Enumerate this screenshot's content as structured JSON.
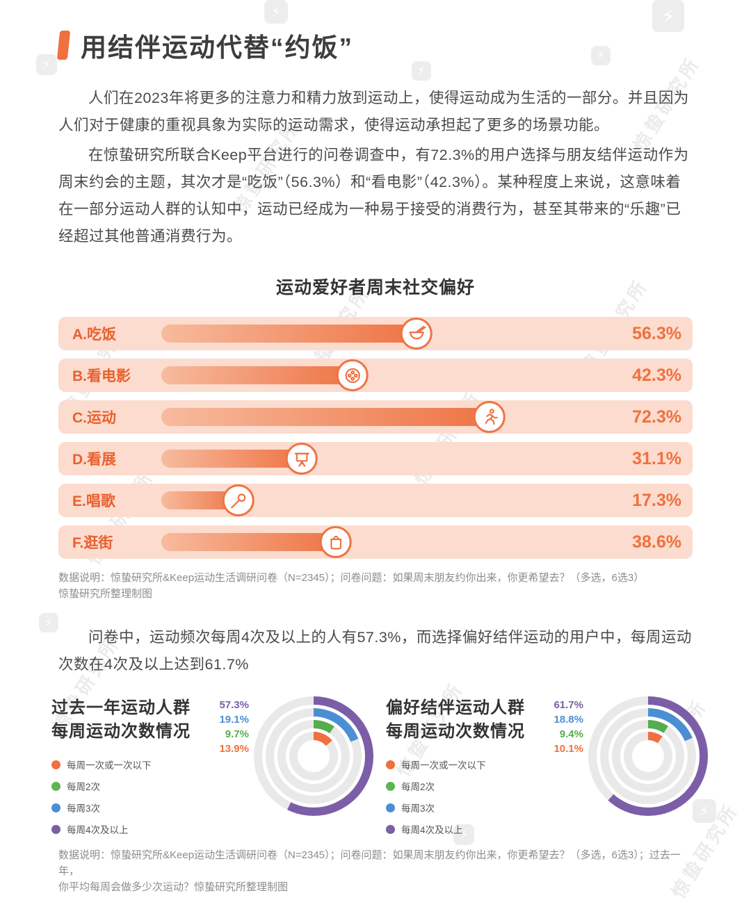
{
  "watermark": {
    "text": "惊蛰研究所",
    "bolt": "⚡"
  },
  "header": {
    "title": "用结伴运动代替“约饭”"
  },
  "intro": {
    "p1": "人们在2023年将更多的注意力和精力放到运动上，使得运动成为生活的一部分。并且因为人们对于健康的重视具象为实际的运动需求，使得运动承担起了更多的场景功能。",
    "p2": "在惊蛰研究所联合Keep平台进行的问卷调查中，有72.3%的用户选择与朋友结伴运动作为周末约会的主题，其次才是“吃饭”（56.3%）和“看电影”（42.3%）。某种程度上来说，这意味着在一部分运动人群的认知中，运动已经成为一种易于接受的消费行为，甚至其带来的“乐趣”已经超过其他普通消费行为。",
    "middle": "问卷中，运动频次每周4次及以上的人有57.3%，而选择偏好结伴运动的用户中，每周运动次数在4次及以上达到61.7%"
  },
  "chart_data": [
    {
      "type": "bar",
      "title": "运动爱好者周末社交偏好",
      "categories": [
        "A.吃饭",
        "B.看电影",
        "C.运动",
        "D.看展",
        "E.唱歌",
        "F.逛街"
      ],
      "values": [
        56.3,
        42.3,
        72.3,
        31.1,
        17.3,
        38.6
      ],
      "icons": [
        "bowl-icon",
        "film-reel-icon",
        "runner-icon",
        "easel-icon",
        "microphone-icon",
        "shopping-bag-icon"
      ],
      "unit": "%",
      "xlim": [
        0,
        100
      ],
      "bar_color_start": "#F7BB9E",
      "bar_color_end": "#EE7445",
      "track_color": "#FBDCCE",
      "note_line1": "数据说明：惊蛰研究所&Keep运动生活调研问卷（N=2345）；问卷问题：如果周末朋友约你出来，你更希望去？（多选，6选3）",
      "note_line2": "惊蛰研究所整理制图"
    },
    {
      "type": "donut",
      "title_line1": "过去一年运动人群",
      "title_line2": "每周运动次数情况",
      "segments": [
        {
          "label": "每周4次及以上",
          "value": 57.3,
          "color": "#7B5EA7"
        },
        {
          "label": "每周3次",
          "value": 19.1,
          "color": "#4B8FD2"
        },
        {
          "label": "每周2次",
          "value": 9.7,
          "color": "#55AD4F"
        },
        {
          "label": "每周一次或一次以下",
          "value": 13.9,
          "color": "#F0703F"
        }
      ]
    },
    {
      "type": "donut",
      "title_line1": "偏好结伴运动人群",
      "title_line2": "每周运动次数情况",
      "segments": [
        {
          "label": "每周4次及以上",
          "value": 61.7,
          "color": "#7B5EA7"
        },
        {
          "label": "每周3次",
          "value": 18.8,
          "color": "#4B8FD2"
        },
        {
          "label": "每周2次",
          "value": 9.4,
          "color": "#55AD4F"
        },
        {
          "label": "每周一次或一次以下",
          "value": 10.1,
          "color": "#F0703F"
        }
      ]
    }
  ],
  "donut_legend": [
    {
      "label": "每周一次或一次以下",
      "color": "#F0703F"
    },
    {
      "label": "每周2次",
      "color": "#5CB551"
    },
    {
      "label": "每周3次",
      "color": "#4B8FD2"
    },
    {
      "label": "每周4次及以上",
      "color": "#7B5EA7"
    }
  ],
  "bottom_note": {
    "line1": "数据说明：惊蛰研究所&Keep运动生活调研问卷（N=2345）；问卷问题：如果周末朋友约你出来，你更希望去？（多选，6选3）；过去一年，",
    "line2": "你平均每周会做多少次运动？惊蛰研究所整理制图"
  }
}
